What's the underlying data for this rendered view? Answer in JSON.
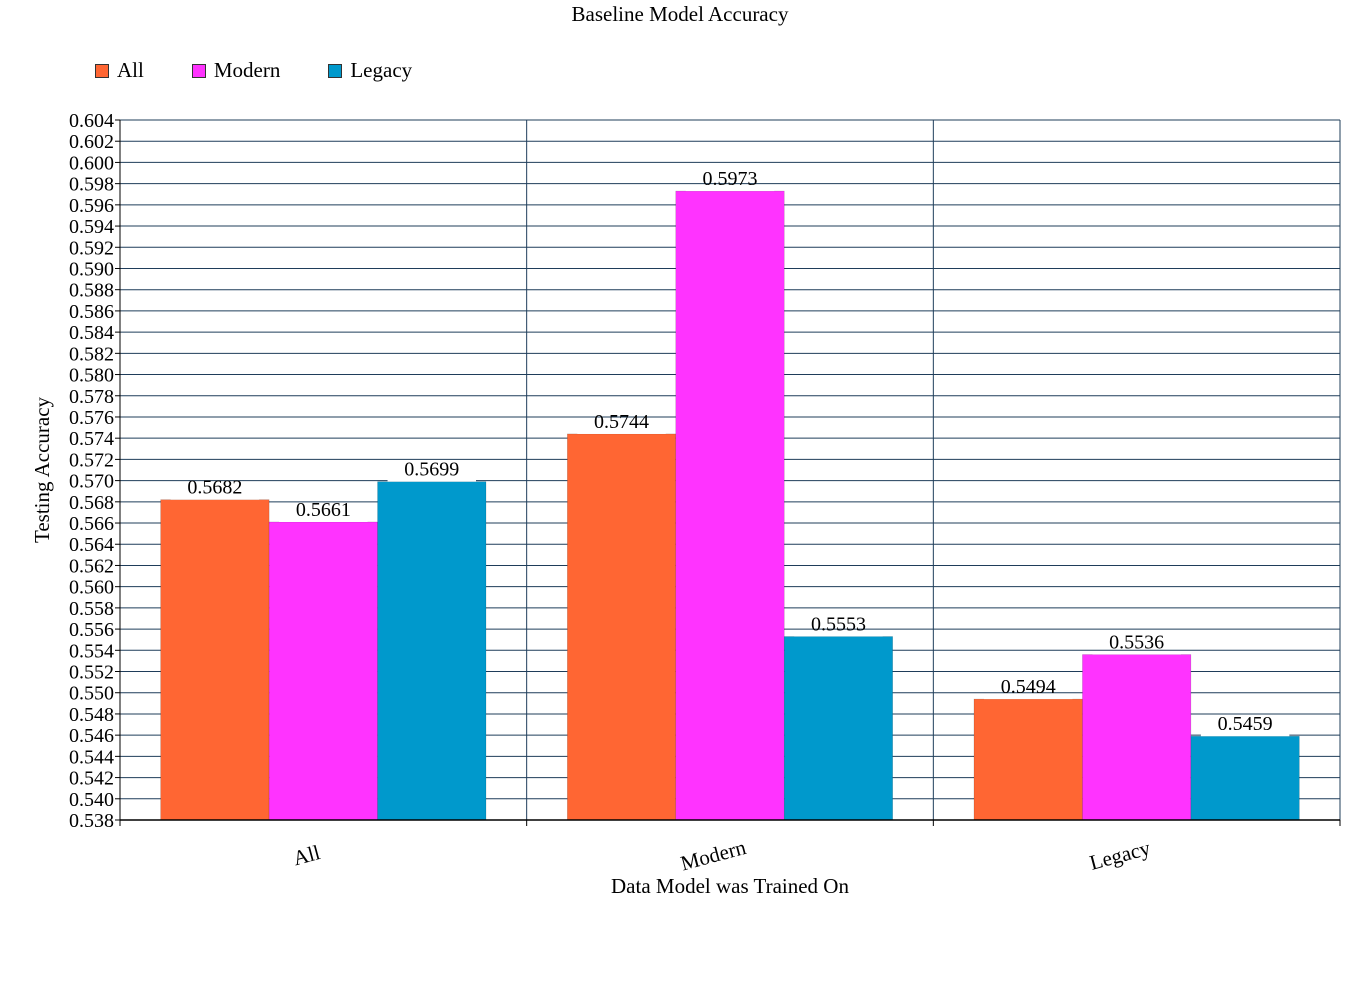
{
  "chart_data": {
    "type": "bar",
    "title": "Baseline Model Accuracy",
    "xlabel": "Data Model was Trained On",
    "ylabel": "Testing Accuracy",
    "categories": [
      "All",
      "Modern",
      "Legacy"
    ],
    "series": [
      {
        "name": "All",
        "color": "#ff6633",
        "values": [
          0.5682,
          0.5744,
          0.5494
        ]
      },
      {
        "name": "Modern",
        "color": "#ff33ff",
        "values": [
          0.5661,
          0.5973,
          0.5536
        ]
      },
      {
        "name": "Legacy",
        "color": "#0099cc",
        "values": [
          0.5699,
          0.5553,
          0.5459
        ]
      }
    ],
    "ylim": [
      0.538,
      0.604
    ],
    "ytick_step": 0.002,
    "data_labels": [
      [
        "0.5682",
        "0.5744",
        "0.5494"
      ],
      [
        "0.5661",
        "0.5973",
        "0.5536"
      ],
      [
        "0.5699",
        "0.5553",
        "0.5459"
      ]
    ],
    "grid": true,
    "legend_position": "top-left"
  }
}
